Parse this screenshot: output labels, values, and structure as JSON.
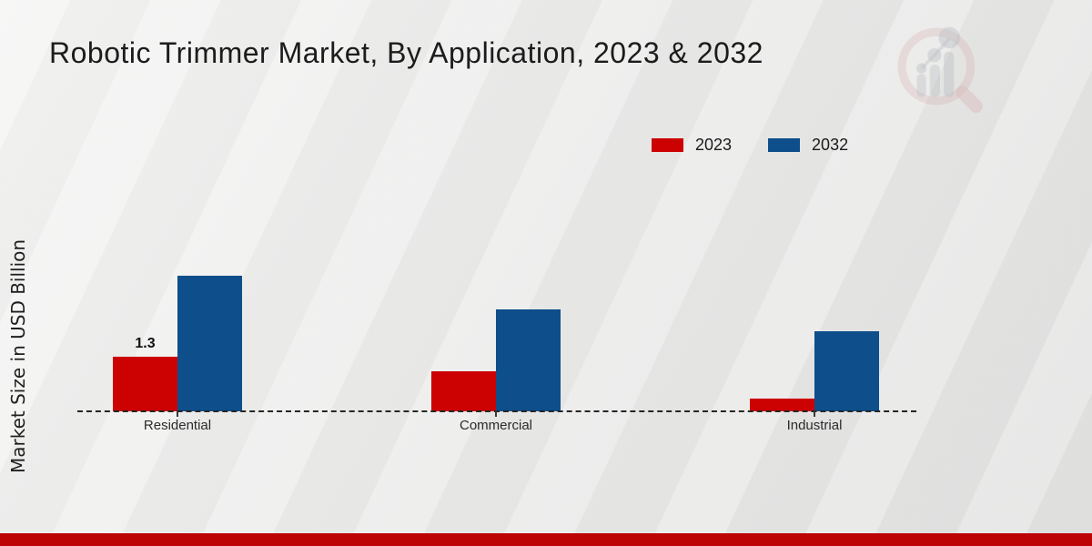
{
  "page": {
    "footer_color": "#bd0404",
    "background_color": "#ebebea"
  },
  "chart_data": {
    "type": "bar",
    "title": "Robotic Trimmer Market, By Application, 2023 & 2032",
    "ylabel": "Market Size in USD Billion",
    "xlabel": "",
    "categories": [
      "Residential",
      "Commercial",
      "Industrial"
    ],
    "series": [
      {
        "name": "2023",
        "color": "#cc0202",
        "values": [
          1.3,
          0.95,
          0.3
        ]
      },
      {
        "name": "2032",
        "color": "#0d4e8b",
        "values": [
          3.2,
          2.4,
          1.9
        ]
      }
    ],
    "data_labels": [
      {
        "series": 0,
        "category": 0,
        "text": "1.3"
      }
    ],
    "ylim": [
      0,
      3.5
    ],
    "grid": false,
    "baseline_style": "dashed",
    "legend_position": "top-right"
  },
  "watermark": {
    "icon": "market-research-future-logo-icon"
  }
}
